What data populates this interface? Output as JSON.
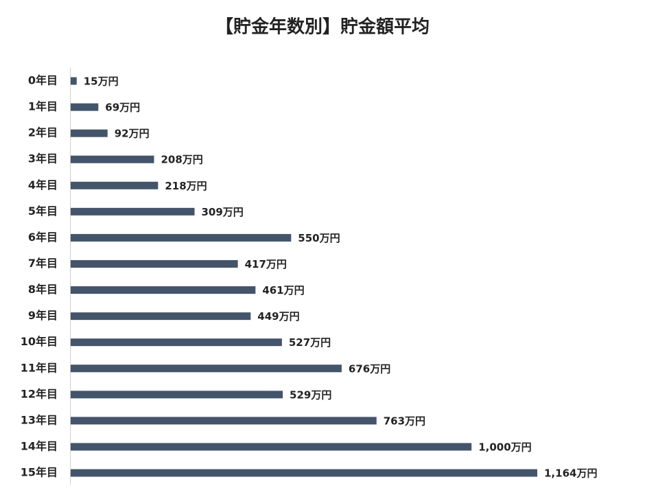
{
  "chart_data": {
    "type": "bar",
    "orientation": "horizontal",
    "title": "【貯金年数別】貯金額平均",
    "categories": [
      "0年目",
      "1年目",
      "2年目",
      "3年目",
      "4年目",
      "5年目",
      "6年目",
      "7年目",
      "8年目",
      "9年目",
      "10年目",
      "11年目",
      "12年目",
      "13年目",
      "14年目",
      "15年目"
    ],
    "values": [
      15,
      69,
      92,
      208,
      218,
      309,
      550,
      417,
      461,
      449,
      527,
      676,
      529,
      763,
      1000,
      1164
    ],
    "value_labels": [
      "15万円",
      "69万円",
      "92万円",
      "208万円",
      "218万円",
      "309万円",
      "550万円",
      "417万円",
      "461万円",
      "449万円",
      "527万円",
      "676万円",
      "529万円",
      "763万円",
      "1,000万円",
      "1,164万円"
    ],
    "color": "#44546a"
  }
}
